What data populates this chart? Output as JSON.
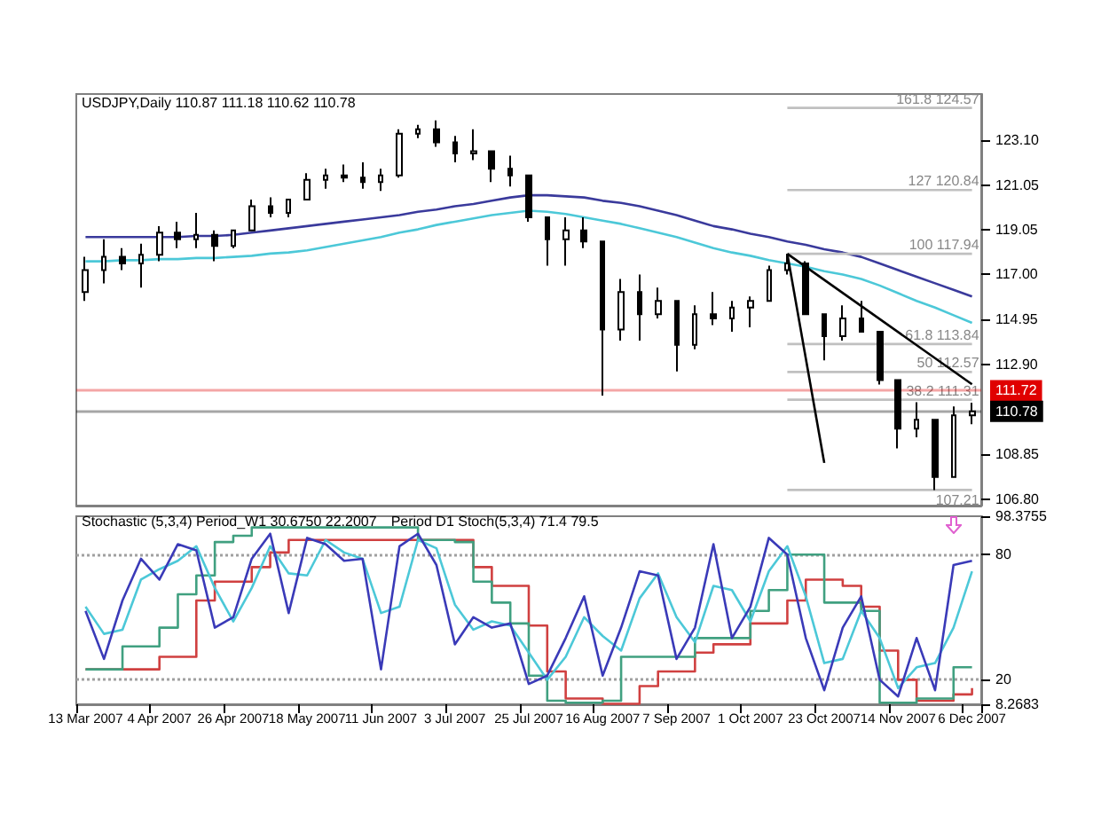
{
  "chart_data": [
    {
      "type": "candlestick",
      "title": "USDJPY,Daily 110.87 111.18 110.62 110.78",
      "categories": [
        null,
        null,
        null,
        null,
        null,
        null,
        null,
        null,
        null,
        null,
        null,
        null,
        null,
        null,
        null,
        null,
        null,
        null,
        null,
        null,
        null,
        null,
        null,
        null,
        null,
        null,
        null,
        null,
        null,
        null,
        null,
        null,
        null,
        null,
        null,
        null,
        null,
        null,
        null,
        null,
        null,
        null,
        null,
        null,
        null,
        null,
        null,
        null,
        null
      ],
      "color": "#000000",
      "ohlc": [
        [
          116.2,
          117.8,
          115.8,
          117.2
        ],
        [
          117.2,
          118.6,
          116.6,
          117.8
        ],
        [
          117.8,
          118.2,
          117.2,
          117.5
        ],
        [
          117.5,
          118.4,
          116.4,
          117.9
        ],
        [
          117.9,
          119.2,
          117.6,
          118.9
        ],
        [
          118.9,
          119.4,
          118.2,
          118.6
        ],
        [
          118.6,
          119.8,
          118.2,
          118.8
        ],
        [
          118.8,
          119.0,
          117.6,
          118.3
        ],
        [
          118.3,
          119.0,
          118.2,
          119.0
        ],
        [
          119.0,
          120.4,
          119.0,
          120.1
        ],
        [
          120.1,
          120.5,
          119.6,
          119.8
        ],
        [
          119.8,
          120.4,
          119.6,
          120.4
        ],
        [
          120.4,
          121.6,
          120.4,
          121.3
        ],
        [
          121.3,
          121.8,
          120.9,
          121.5
        ],
        [
          121.5,
          122.0,
          121.2,
          121.4
        ],
        [
          121.4,
          122.1,
          120.9,
          121.2
        ],
        [
          121.2,
          121.8,
          120.8,
          121.5
        ],
        [
          121.5,
          123.6,
          121.4,
          123.4
        ],
        [
          123.4,
          123.8,
          123.2,
          123.6
        ],
        [
          123.6,
          124.0,
          122.8,
          123.0
        ],
        [
          123.0,
          123.3,
          122.1,
          122.5
        ],
        [
          122.5,
          123.6,
          122.2,
          122.6
        ],
        [
          122.6,
          122.6,
          121.2,
          121.8
        ],
        [
          121.8,
          122.4,
          121.0,
          121.5
        ],
        [
          121.5,
          121.5,
          119.4,
          119.6
        ],
        [
          119.6,
          119.6,
          117.4,
          118.6
        ],
        [
          118.6,
          119.6,
          117.4,
          119.0
        ],
        [
          119.0,
          119.6,
          118.2,
          118.5
        ],
        [
          118.5,
          118.5,
          111.5,
          114.5
        ],
        [
          114.5,
          116.8,
          114.0,
          116.2
        ],
        [
          116.2,
          117.0,
          114.0,
          115.2
        ],
        [
          115.2,
          116.4,
          115.0,
          115.8
        ],
        [
          115.8,
          115.8,
          112.6,
          113.8
        ],
        [
          113.8,
          115.6,
          113.6,
          115.2
        ],
        [
          115.2,
          116.2,
          114.7,
          115.0
        ],
        [
          115.0,
          115.8,
          114.4,
          115.5
        ],
        [
          115.5,
          116.0,
          114.6,
          115.8
        ],
        [
          115.8,
          117.4,
          115.8,
          117.2
        ],
        [
          117.2,
          117.94,
          117.0,
          117.5
        ],
        [
          117.5,
          117.6,
          115.2,
          115.2
        ],
        [
          115.2,
          115.2,
          113.1,
          114.2
        ],
        [
          114.2,
          115.6,
          114.0,
          115.0
        ],
        [
          115.0,
          115.8,
          114.4,
          114.4
        ],
        [
          114.4,
          114.4,
          112.0,
          112.2
        ],
        [
          112.2,
          112.2,
          109.1,
          110.0
        ],
        [
          110.0,
          111.2,
          109.6,
          110.4
        ],
        [
          110.4,
          110.4,
          107.21,
          107.8
        ],
        [
          107.8,
          111.0,
          107.8,
          110.6
        ],
        [
          110.6,
          111.18,
          110.2,
          110.78
        ]
      ],
      "series": [
        {
          "type": "line",
          "color": "#3a3a9c",
          "values": [
            118.7,
            118.7,
            118.7,
            118.7,
            118.7,
            118.7,
            118.75,
            118.75,
            118.8,
            118.9,
            119.0,
            119.1,
            119.2,
            119.3,
            119.4,
            119.5,
            119.6,
            119.7,
            119.85,
            119.95,
            120.1,
            120.2,
            120.35,
            120.5,
            120.6,
            120.6,
            120.55,
            120.5,
            120.35,
            120.25,
            120.1,
            119.9,
            119.7,
            119.45,
            119.2,
            119.05,
            118.85,
            118.7,
            118.5,
            118.35,
            118.15,
            118.0,
            117.8,
            117.5,
            117.2,
            116.9,
            116.6,
            116.3,
            116.0
          ]
        },
        {
          "type": "line",
          "color": "#4cc8d8",
          "values": [
            117.6,
            117.6,
            117.65,
            117.65,
            117.7,
            117.7,
            117.75,
            117.75,
            117.8,
            117.85,
            117.95,
            118.0,
            118.1,
            118.25,
            118.4,
            118.55,
            118.7,
            118.9,
            119.05,
            119.25,
            119.4,
            119.55,
            119.7,
            119.8,
            119.9,
            119.85,
            119.75,
            119.6,
            119.45,
            119.3,
            119.1,
            118.9,
            118.7,
            118.45,
            118.2,
            118.0,
            117.85,
            117.65,
            117.5,
            117.35,
            117.15,
            117.0,
            116.8,
            116.5,
            116.15,
            115.8,
            115.5,
            115.15,
            114.8
          ]
        },
        {
          "type": "line",
          "color": "#c0c0c0",
          "values": [
            null,
            null,
            null,
            null,
            null,
            null,
            null,
            null,
            null,
            null,
            null,
            null,
            null,
            null,
            null,
            null,
            null,
            null,
            null,
            null,
            null,
            null,
            null,
            null,
            null,
            null,
            null,
            null,
            null,
            null,
            null,
            null,
            null,
            null,
            null,
            null,
            null,
            null,
            124.57,
            124.57,
            124.57,
            124.57,
            124.57,
            124.57,
            124.57,
            124.57,
            124.57,
            124.57,
            124.57
          ]
        },
        {
          "type": "line",
          "color": "#c0c0c0",
          "values": [
            null,
            null,
            null,
            null,
            null,
            null,
            null,
            null,
            null,
            null,
            null,
            null,
            null,
            null,
            null,
            null,
            null,
            null,
            null,
            null,
            null,
            null,
            null,
            null,
            null,
            null,
            null,
            null,
            null,
            null,
            null,
            null,
            null,
            null,
            null,
            null,
            null,
            null,
            120.84,
            120.84,
            120.84,
            120.84,
            120.84,
            120.84,
            120.84,
            120.84,
            120.84,
            120.84,
            120.84
          ]
        },
        {
          "type": "line",
          "color": "#c0c0c0",
          "values": [
            null,
            null,
            null,
            null,
            null,
            null,
            null,
            null,
            null,
            null,
            null,
            null,
            null,
            null,
            null,
            null,
            null,
            null,
            null,
            null,
            null,
            null,
            null,
            null,
            null,
            null,
            null,
            null,
            null,
            null,
            null,
            null,
            null,
            null,
            null,
            null,
            null,
            null,
            117.94,
            117.94,
            117.94,
            117.94,
            117.94,
            117.94,
            117.94,
            117.94,
            117.94,
            117.94,
            117.94
          ]
        },
        {
          "type": "line",
          "color": "#c0c0c0",
          "values": [
            null,
            null,
            null,
            null,
            null,
            null,
            null,
            null,
            null,
            null,
            null,
            null,
            null,
            null,
            null,
            null,
            null,
            null,
            null,
            null,
            null,
            null,
            null,
            null,
            null,
            null,
            null,
            null,
            null,
            null,
            null,
            null,
            null,
            null,
            null,
            null,
            null,
            null,
            113.84,
            113.84,
            113.84,
            113.84,
            113.84,
            113.84,
            113.84,
            113.84,
            113.84,
            113.84,
            113.84
          ]
        },
        {
          "type": "line",
          "color": "#c0c0c0",
          "values": [
            null,
            null,
            null,
            null,
            null,
            null,
            null,
            null,
            null,
            null,
            null,
            null,
            null,
            null,
            null,
            null,
            null,
            null,
            null,
            null,
            null,
            null,
            null,
            null,
            null,
            null,
            null,
            null,
            null,
            null,
            null,
            null,
            null,
            null,
            null,
            null,
            null,
            null,
            112.57,
            112.57,
            112.57,
            112.57,
            112.57,
            112.57,
            112.57,
            112.57,
            112.57,
            112.57,
            112.57
          ]
        },
        {
          "type": "line",
          "color": "#c0c0c0",
          "values": [
            null,
            null,
            null,
            null,
            null,
            null,
            null,
            null,
            null,
            null,
            null,
            null,
            null,
            null,
            null,
            null,
            null,
            null,
            null,
            null,
            null,
            null,
            null,
            null,
            null,
            null,
            null,
            null,
            null,
            null,
            null,
            null,
            null,
            null,
            null,
            null,
            null,
            null,
            111.31,
            111.31,
            111.31,
            111.31,
            111.31,
            111.31,
            111.31,
            111.31,
            111.31,
            111.31,
            111.31
          ]
        },
        {
          "type": "line",
          "color": "#c0c0c0",
          "values": [
            null,
            null,
            null,
            null,
            null,
            null,
            null,
            null,
            null,
            null,
            null,
            null,
            null,
            null,
            null,
            null,
            null,
            null,
            null,
            null,
            null,
            null,
            null,
            null,
            null,
            null,
            null,
            null,
            null,
            null,
            null,
            null,
            null,
            null,
            null,
            null,
            null,
            null,
            107.21,
            107.21,
            107.21,
            107.21,
            107.21,
            107.21,
            107.21,
            107.21,
            107.21,
            107.21,
            107.21
          ]
        },
        {
          "type": "line",
          "color": "#000000",
          "values": [
            null,
            null,
            null,
            null,
            null,
            null,
            null,
            null,
            null,
            null,
            null,
            null,
            null,
            null,
            null,
            null,
            null,
            null,
            null,
            null,
            null,
            null,
            null,
            null,
            null,
            null,
            null,
            null,
            null,
            null,
            null,
            null,
            null,
            null,
            null,
            null,
            null,
            null,
            117.94,
            null,
            108.44,
            null,
            null,
            null,
            null,
            null,
            null,
            null,
            null
          ]
        },
        {
          "type": "line",
          "color": "#000000",
          "values": [
            null,
            null,
            null,
            null,
            null,
            null,
            null,
            null,
            null,
            null,
            null,
            null,
            null,
            null,
            null,
            null,
            null,
            null,
            null,
            null,
            null,
            null,
            null,
            null,
            null,
            null,
            null,
            null,
            null,
            null,
            null,
            null,
            null,
            null,
            null,
            null,
            null,
            null,
            117.94,
            null,
            null,
            null,
            null,
            null,
            null,
            null,
            null,
            null,
            112.01
          ]
        }
      ],
      "annotations": [
        {
          "text": "161.8 124.57",
          "y": 124.57
        },
        {
          "text": "127 120.84",
          "y": 120.84
        },
        {
          "text": "100 117.94",
          "y": 117.94
        },
        {
          "text": "61.8 113.84",
          "y": 113.84
        },
        {
          "text": "50 112.57",
          "y": 112.57
        },
        {
          "text": "38.2 111.31",
          "y": 111.31
        },
        {
          "text": "107.21",
          "y": 107.21
        }
      ],
      "ref_lines": [
        {
          "axis": "y",
          "value": 111.72,
          "label": "111.72",
          "color": "#e00000"
        },
        {
          "axis": "y",
          "value": 110.78,
          "label": "110.78",
          "color": "#000000"
        }
      ],
      "ylim": [
        106.5,
        125.2
      ],
      "yticks": [
        {
          "value": 106.8,
          "label": "106.80"
        },
        {
          "value": 108.85,
          "label": "108.85"
        },
        {
          "value": 112.9,
          "label": "112.90"
        },
        {
          "value": 114.95,
          "label": "114.95"
        },
        {
          "value": 117,
          "label": "117.00"
        },
        {
          "value": 119.05,
          "label": "119.05"
        },
        {
          "value": 121.05,
          "label": "121.05"
        },
        {
          "value": 123.1,
          "label": "123.10"
        }
      ],
      "tick_labels": "y",
      "grid": false
    },
    {
      "type": "line",
      "title": "Stochastic (5,3,4) Period_W1 30.6750 22.2007",
      "subtitle": "Period D1 Stoch(5,3,4) 71.4 79.5",
      "categories": [
        "13 Mar 2007",
        null,
        null,
        null,
        "4 Apr 2007",
        null,
        null,
        null,
        "26 Apr 2007",
        null,
        null,
        null,
        "18 May 2007",
        null,
        null,
        null,
        "11 Jun 2007",
        null,
        null,
        null,
        "3 Jul 2007",
        null,
        null,
        null,
        "25 Jul 2007",
        null,
        null,
        null,
        "16 Aug 2007",
        null,
        null,
        null,
        "7 Sep 2007",
        null,
        null,
        null,
        "1 Oct 2007",
        null,
        null,
        null,
        "23 Oct 2007",
        null,
        null,
        null,
        "14 Nov 2007",
        null,
        null,
        null,
        "6 Dec 2007"
      ],
      "series": [
        {
          "type": "step",
          "color": "#d04040",
          "values": [
            25,
            25,
            25,
            25,
            31,
            31,
            58,
            67,
            67,
            74,
            81,
            87,
            87,
            87,
            87,
            87,
            87,
            87,
            87,
            87,
            87,
            74,
            65,
            65,
            46,
            24,
            11,
            11,
            8.5,
            8.5,
            17,
            24,
            24,
            33,
            37,
            37,
            47,
            47,
            58,
            68,
            68,
            65,
            55,
            34,
            20,
            10,
            10,
            13,
            16
          ]
        },
        {
          "type": "step",
          "color": "#40a080",
          "values": [
            25,
            25,
            36,
            36,
            45,
            61,
            70,
            86,
            89,
            93,
            93,
            93,
            93,
            93,
            93,
            93,
            93,
            93,
            87,
            87,
            86,
            67,
            57,
            47,
            22,
            10,
            9,
            9,
            10,
            31,
            31,
            31,
            31,
            40,
            40,
            40,
            53,
            63,
            80,
            80,
            57,
            57,
            53,
            9,
            9,
            11,
            11,
            26,
            26
          ]
        },
        {
          "color": "#4cc8d8",
          "values": [
            55,
            42,
            44,
            68,
            73,
            77,
            84,
            64,
            48,
            64,
            84,
            71,
            70,
            87,
            81,
            78,
            52,
            55,
            87,
            83,
            56,
            44,
            48,
            46,
            33,
            20,
            31,
            50,
            41,
            34,
            59,
            71,
            50,
            38,
            65,
            63,
            48,
            72,
            84,
            60,
            28,
            30,
            53,
            40,
            16,
            26,
            28,
            45,
            72
          ]
        },
        {
          "color": "#3a3ab8",
          "values": [
            53,
            30,
            58,
            78,
            68,
            85,
            82,
            45,
            50,
            78,
            90,
            52,
            88,
            85,
            77,
            78,
            25,
            84,
            90,
            75,
            37,
            50,
            45,
            47,
            18,
            22,
            40,
            60,
            22,
            45,
            72,
            70,
            30,
            45,
            85,
            40,
            55,
            88,
            80,
            40,
            15,
            45,
            60,
            20,
            12,
            40,
            15,
            75,
            77
          ]
        }
      ],
      "ref_lines": [
        {
          "axis": "y",
          "value": 80,
          "color": "#a0a0a0",
          "line_style": "dotted"
        },
        {
          "axis": "y",
          "value": 20,
          "color": "#a0a0a0",
          "line_style": "dotted"
        }
      ],
      "ylim": [
        8.2683,
        98.3755
      ],
      "yticks": [
        8.2683,
        20,
        80,
        98.3755
      ],
      "grid": false
    }
  ]
}
